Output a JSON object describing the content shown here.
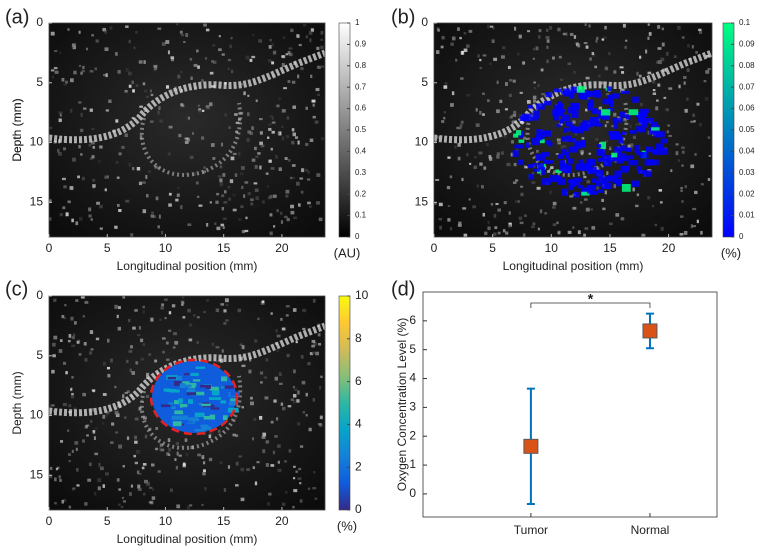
{
  "chart_data": [
    {
      "type": "image",
      "panel_label": "(a)",
      "xlabel": "Longitudinal position (mm)",
      "ylabel": "Depth (mm)",
      "xlim": [
        0,
        23.7
      ],
      "xticks": [
        0,
        5,
        10,
        15,
        20
      ],
      "ylim": [
        0,
        17.9
      ],
      "yticks": [
        0,
        5,
        10,
        15
      ],
      "colorbar": {
        "lim": [
          0,
          1
        ],
        "ticks": [
          0,
          0.1,
          0.2,
          0.3,
          0.4,
          0.5,
          0.6,
          0.7,
          0.8,
          0.9,
          1
        ],
        "label": "(AU)",
        "colors": [
          "#000000",
          "#ffffff"
        ]
      }
    },
    {
      "type": "image",
      "panel_label": "(b)",
      "xlabel": "Longitudinal position (mm)",
      "ylabel": "Depth (mm)",
      "xlim": [
        0,
        23.7
      ],
      "xticks": [
        0,
        5,
        10,
        15,
        20
      ],
      "ylim": [
        0,
        17.9
      ],
      "yticks": [
        0,
        5,
        10,
        15
      ],
      "colorbar": {
        "lim": [
          0,
          0.1
        ],
        "ticks": [
          0,
          0.01,
          0.02,
          0.03,
          0.04,
          0.05,
          0.06,
          0.07,
          0.08,
          0.09,
          0.1
        ],
        "label": "(%)",
        "colors": [
          "#0000ff",
          "#00ff80"
        ]
      }
    },
    {
      "type": "image",
      "panel_label": "(c)",
      "xlabel": "Longitudinal position (mm)",
      "ylabel": "Depth (mm)",
      "xlim": [
        0,
        23.7
      ],
      "xticks": [
        0,
        5,
        10,
        15,
        20
      ],
      "ylim": [
        0,
        17.9
      ],
      "yticks": [
        0,
        5,
        10,
        15
      ],
      "colorbar": {
        "lim": [
          0,
          10
        ],
        "ticks": [
          0,
          2,
          4,
          6,
          8,
          10
        ],
        "label": "(%)",
        "colors": [
          "#352a87",
          "#0f5cdd",
          "#1481d6",
          "#06a4ca",
          "#2eb7a4",
          "#87bf77",
          "#d1bb59",
          "#fec832",
          "#f9fb0e"
        ]
      }
    },
    {
      "type": "errorbar",
      "panel_label": "(d)",
      "ylabel": "Oxygen Concentration Level (%)",
      "categories": [
        "Tumor",
        "Normal"
      ],
      "values": [
        1.65,
        5.65
      ],
      "errors": [
        2.0,
        0.6
      ],
      "ylim": [
        -0.8,
        7
      ],
      "yticks": [
        0,
        1,
        2,
        3,
        4,
        5,
        6
      ],
      "significance": "*",
      "marker_color": "#d95319",
      "bar_color": "#0072bd"
    }
  ]
}
